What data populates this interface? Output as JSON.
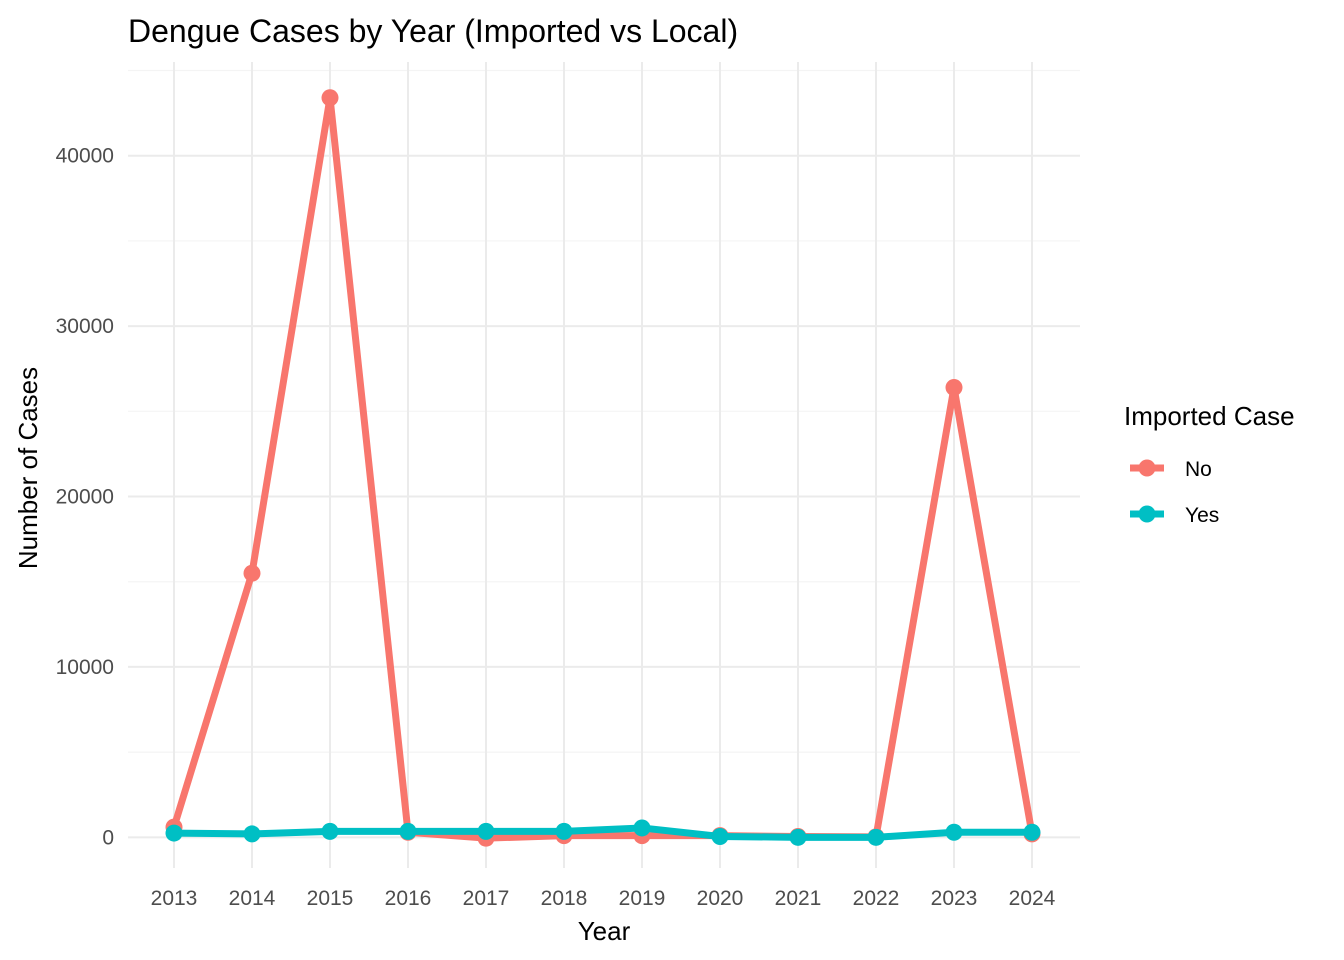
{
  "chart_data": {
    "type": "line",
    "title": "Dengue Cases by Year (Imported vs Local)",
    "xlabel": "Year",
    "ylabel": "Number of Cases",
    "x": [
      2013,
      2014,
      2015,
      2016,
      2017,
      2018,
      2019,
      2020,
      2021,
      2022,
      2023,
      2024
    ],
    "x_tick_labels": [
      "2013",
      "2014",
      "2015",
      "2016",
      "2017",
      "2018",
      "2019",
      "2020",
      "2021",
      "2022",
      "2023",
      "2024"
    ],
    "y_ticks": [
      0,
      10000,
      20000,
      30000,
      40000
    ],
    "y_tick_labels": [
      "0",
      "10000",
      "20000",
      "30000",
      "40000"
    ],
    "ylim": [
      -1800,
      45500
    ],
    "grid": true,
    "legend": {
      "title": "Imported Case",
      "placement": "right"
    },
    "series": [
      {
        "name": "No",
        "color": "#F8766D",
        "values": [
          600,
          15500,
          43400,
          300,
          -50,
          100,
          100,
          100,
          50,
          30,
          26400,
          200
        ]
      },
      {
        "name": "Yes",
        "color": "#00BFC4",
        "values": [
          250,
          200,
          350,
          350,
          350,
          350,
          550,
          50,
          0,
          0,
          300,
          300
        ]
      }
    ]
  }
}
